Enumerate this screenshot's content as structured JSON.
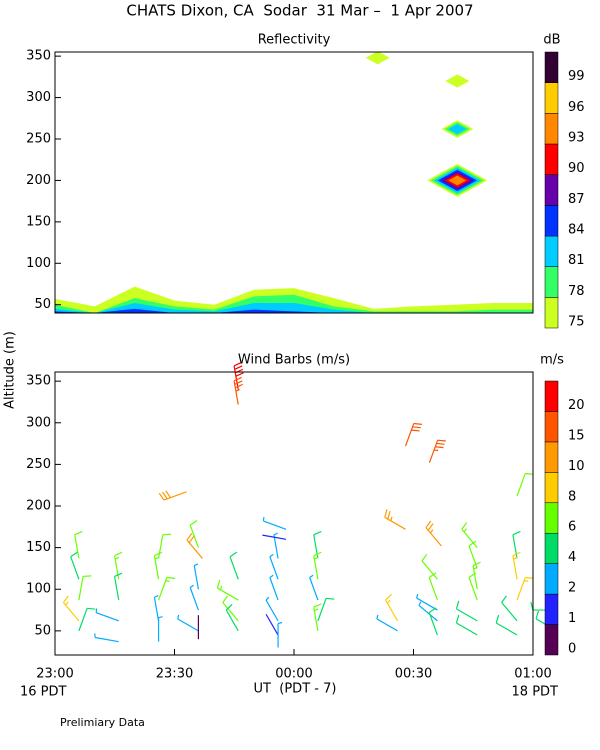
{
  "title": "CHATS Dixon, CA  Sodar  31 Mar –  1 Apr 2007",
  "ylabel": "Altitude (m)",
  "xlabel": "UT  (PDT - 7)",
  "date_left": "16 PDT",
  "date_right": "18 PDT",
  "footnote": "Prelimiary Data",
  "chart_data": [
    {
      "type": "contour",
      "title": "Reflectivity",
      "colorbar_label": "dB",
      "xlim": [
        0,
        120
      ],
      "ylim": [
        40,
        355
      ],
      "yticks": [
        50,
        100,
        150,
        200,
        250,
        300,
        350
      ],
      "zticks": [
        75,
        78,
        81,
        84,
        87,
        90,
        93,
        96,
        99
      ],
      "zcolors": [
        "#ccff22",
        "#33ff66",
        "#00ccff",
        "#0033ff",
        "#6600aa",
        "#ff0000",
        "#ff8800",
        "#ffcc00",
        "#330033"
      ],
      "x": [
        0,
        10,
        20,
        30,
        40,
        50,
        60,
        70,
        80,
        90,
        100,
        110,
        120
      ],
      "series": [
        {
          "color": "#ccff22",
          "values": [
            57,
            48,
            72,
            55,
            50,
            68,
            70,
            58,
            45,
            48,
            50,
            52,
            52
          ]
        },
        {
          "color": "#33ff66",
          "values": [
            50,
            40,
            58,
            48,
            44,
            60,
            62,
            48,
            42,
            42,
            42,
            44,
            44
          ]
        },
        {
          "color": "#00ccff",
          "values": [
            45,
            40,
            52,
            44,
            42,
            52,
            52,
            44,
            40,
            40,
            40,
            40,
            40
          ]
        },
        {
          "color": "#0033ff",
          "values": [
            42,
            40,
            45,
            40,
            40,
            44,
            42,
            40,
            40,
            40,
            40,
            40,
            40
          ]
        }
      ],
      "blobs": [
        {
          "x": 81,
          "y": 348,
          "levels": [
            75
          ]
        },
        {
          "x": 101,
          "y": 320,
          "levels": [
            75
          ]
        },
        {
          "x": 101,
          "y": 262,
          "levels": [
            75,
            78,
            81
          ]
        },
        {
          "x": 101,
          "y": 200,
          "levels": [
            75,
            78,
            81,
            84,
            87,
            90,
            93
          ]
        }
      ]
    },
    {
      "type": "barbs",
      "title": "Wind Barbs (m/s)",
      "colorbar_label": "m/s",
      "xlim": [
        0,
        120
      ],
      "ylim": [
        21,
        361
      ],
      "yticks": [
        50,
        100,
        150,
        200,
        250,
        300,
        350
      ],
      "xticks": [
        {
          "value": 0,
          "label": "23:00"
        },
        {
          "value": 30,
          "label": "23:30"
        },
        {
          "value": 60,
          "label": "00:00"
        },
        {
          "value": 90,
          "label": "00:30"
        },
        {
          "value": 120,
          "label": "01:00"
        }
      ],
      "zticks": [
        0,
        1,
        2,
        4,
        6,
        8,
        10,
        15,
        20
      ],
      "zcolors": [
        "#550055",
        "#2222ff",
        "#00aaff",
        "#00dd66",
        "#66ff00",
        "#ffcc00",
        "#ff9900",
        "#ff5500",
        "#ff0000"
      ],
      "t": [
        6,
        6,
        6,
        6,
        6,
        16,
        16,
        16,
        16,
        26,
        26,
        26,
        26,
        26,
        36,
        36,
        36,
        36,
        36,
        46,
        46,
        46,
        46,
        56,
        56,
        56,
        56,
        56,
        56,
        66,
        66,
        66,
        66,
        66,
        86,
        86,
        96,
        96,
        96,
        96,
        96,
        106,
        106,
        106,
        106,
        106,
        106,
        116,
        116,
        116,
        116,
        116,
        126,
        126,
        46,
        46,
        88,
        94,
        33,
        88,
        97,
        37,
        58,
        58,
        116
      ],
      "z": [
        137,
        112,
        87,
        62,
        50,
        112,
        87,
        62,
        37,
        137,
        112,
        87,
        62,
        37,
        150,
        100,
        75,
        50,
        40,
        112,
        87,
        62,
        50,
        137,
        112,
        87,
        62,
        45,
        30,
        137,
        112,
        87,
        62,
        50,
        62,
        50,
        112,
        87,
        75,
        62,
        45,
        150,
        125,
        100,
        87,
        62,
        45,
        137,
        112,
        87,
        62,
        45,
        75,
        50,
        340,
        322,
        272,
        252,
        217,
        172,
        152,
        137,
        172,
        160,
        212
      ],
      "speed": [
        6,
        5,
        6,
        8,
        4,
        7,
        5,
        3,
        2,
        6,
        7,
        7,
        2,
        2,
        6,
        3,
        3,
        2,
        0.5,
        5,
        7,
        6,
        4,
        2,
        3,
        2,
        2,
        1,
        2,
        4,
        7,
        3,
        5,
        7,
        8,
        3,
        6,
        6,
        2,
        3,
        4,
        7,
        6,
        7,
        6,
        4,
        4,
        4,
        8,
        8,
        4,
        4,
        5,
        4,
        20,
        18,
        15,
        18,
        14,
        12,
        12,
        10,
        3,
        1,
        6
      ],
      "dir": [
        350,
        340,
        10,
        320,
        20,
        350,
        350,
        290,
        280,
        10,
        350,
        20,
        350,
        0,
        340,
        350,
        340,
        300,
        0,
        340,
        300,
        320,
        330,
        350,
        340,
        340,
        330,
        330,
        0,
        350,
        350,
        340,
        20,
        350,
        330,
        300,
        320,
        340,
        300,
        310,
        340,
        320,
        340,
        350,
        340,
        300,
        300,
        350,
        350,
        20,
        320,
        300,
        270,
        300,
        350,
        350,
        20,
        20,
        250,
        300,
        320,
        320,
        290,
        280,
        20
      ]
    }
  ]
}
